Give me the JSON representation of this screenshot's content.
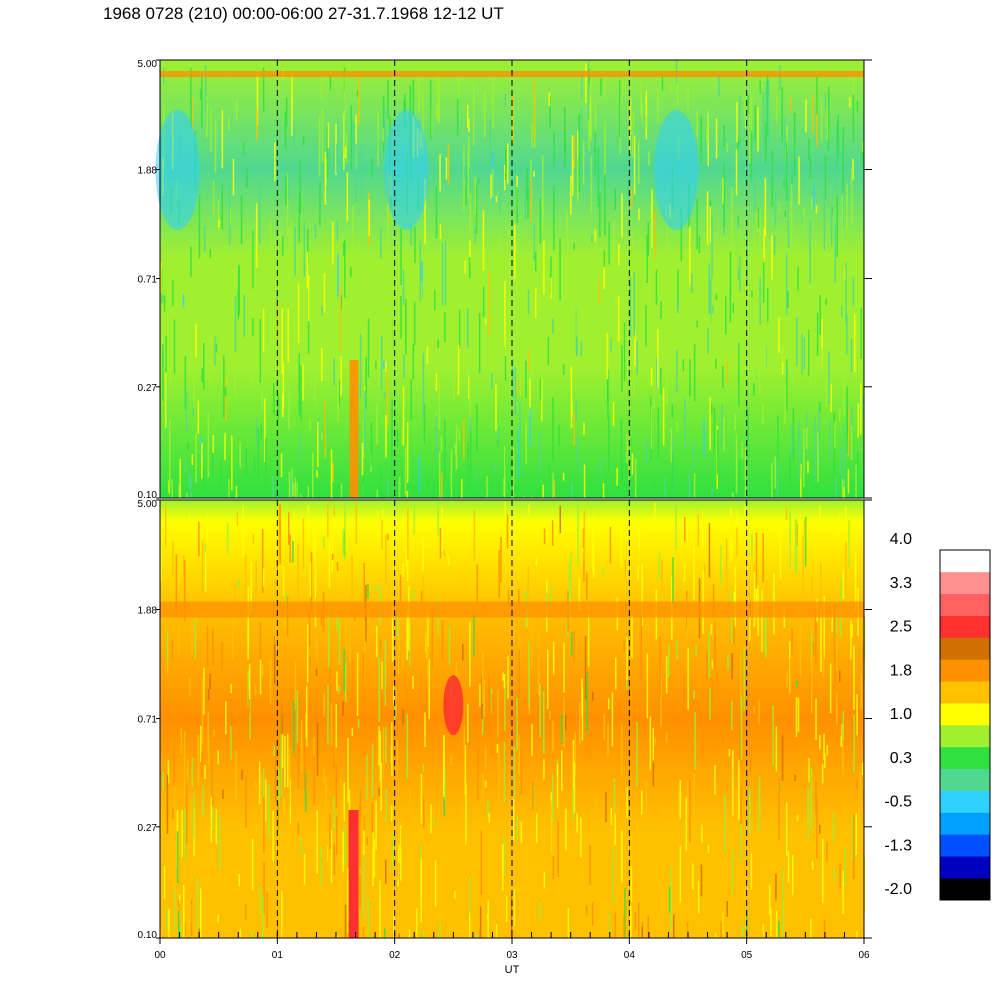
{
  "title": "1968 0728 (210) 00:00-06:00 27-31.7.1968  12-12 UT",
  "chart_data": {
    "type": "heatmap",
    "xlabel": "UT",
    "x_ticks": [
      "00",
      "01",
      "02",
      "03",
      "04",
      "05",
      "06"
    ],
    "x_range": [
      0,
      6
    ],
    "panels": [
      {
        "y_ticks": [
          "5.00",
          "1.88",
          "0.71",
          "0.27",
          "0.10"
        ],
        "y_range": [
          0.1,
          5.0
        ],
        "y_scale": "log",
        "dominant_levels": [
          0.3,
          1.0
        ],
        "features": {
          "band_near_top_value": 1.8,
          "low_regions_value": -0.5,
          "vertical_streak_hour": 1.65,
          "vertical_streak_value": 1.8
        }
      },
      {
        "y_ticks": [
          "5.00",
          "1.88",
          "0.71",
          "0.27",
          "0.10"
        ],
        "y_range": [
          0.1,
          5.0
        ],
        "y_scale": "log",
        "dominant_levels": [
          1.0,
          1.8
        ],
        "features": {
          "band_at_value": 1.8,
          "band_freq": 1.88,
          "hot_spot_hour": 2.5,
          "hot_spot_value": 2.5,
          "vertical_streak_hour": 1.65,
          "vertical_streak_value": 2.5
        }
      }
    ],
    "colorbar": {
      "labels": [
        "4.0",
        "3.3",
        "2.5",
        "1.8",
        "1.0",
        "0.3",
        "-0.5",
        "-1.3",
        "-2.0"
      ],
      "range": [
        -2.0,
        4.0
      ],
      "colors": [
        "#000000",
        "#0000c0",
        "#0050ff",
        "#00a0ff",
        "#30d0ff",
        "#50d890",
        "#30e040",
        "#a0f030",
        "#ffff00",
        "#ffc000",
        "#ff9000",
        "#d07000",
        "#ff3030",
        "#ff6060",
        "#ff9090",
        "#ffffff"
      ]
    }
  }
}
